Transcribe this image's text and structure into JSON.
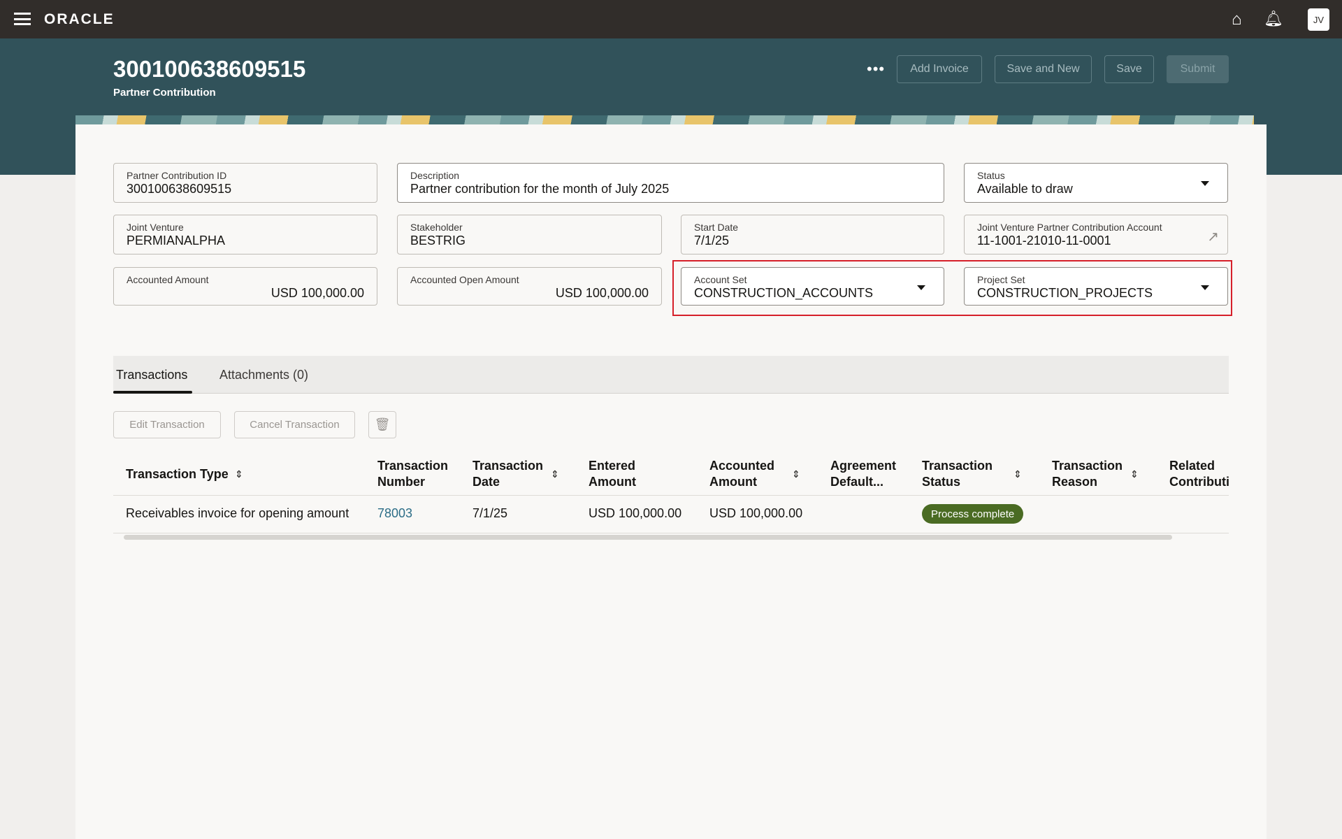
{
  "topbar": {
    "brand": "ORACLE",
    "avatar_initials": "JV",
    "icons": [
      "menu-icon",
      "home-icon",
      "bell-icon"
    ]
  },
  "header": {
    "title": "300100638609515",
    "subtitle": "Partner Contribution",
    "more": "•••",
    "buttons": {
      "add_invoice": "Add Invoice",
      "save_and_new": "Save and New",
      "save": "Save",
      "submit": "Submit"
    }
  },
  "fields": {
    "partner_contribution_id": {
      "label": "Partner Contribution ID",
      "value": "300100638609515"
    },
    "description": {
      "label": "Description",
      "value": "Partner contribution for the month of July 2025"
    },
    "status": {
      "label": "Status",
      "value": "Available to draw"
    },
    "joint_venture": {
      "label": "Joint Venture",
      "value": "PERMIANALPHA"
    },
    "stakeholder": {
      "label": "Stakeholder",
      "value": "BESTRIG"
    },
    "start_date": {
      "label": "Start Date",
      "value": "7/1/25"
    },
    "jv_account": {
      "label": "Joint Venture Partner Contribution Account",
      "value": "11-1001-21010-11-0001"
    },
    "accounted_amount": {
      "label": "Accounted Amount",
      "value": "USD 100,000.00"
    },
    "accounted_open_amount": {
      "label": "Accounted Open Amount",
      "value": "USD 100,000.00"
    },
    "account_set": {
      "label": "Account Set",
      "value": "CONSTRUCTION_ACCOUNTS"
    },
    "project_set": {
      "label": "Project Set",
      "value": "CONSTRUCTION_PROJECTS"
    }
  },
  "tabs": [
    {
      "label": "Transactions",
      "active": true
    },
    {
      "label": "Attachments (0)",
      "active": false
    }
  ],
  "toolbar": {
    "edit": "Edit Transaction",
    "cancel": "Cancel Transaction"
  },
  "table": {
    "columns": [
      {
        "l1": "Transaction Type",
        "l2": ""
      },
      {
        "l1": "Transaction",
        "l2": "Number"
      },
      {
        "l1": "Transaction",
        "l2": "Date"
      },
      {
        "l1": "Entered",
        "l2": "Amount"
      },
      {
        "l1": "Accounted",
        "l2": "Amount"
      },
      {
        "l1": "Agreement",
        "l2": "Default..."
      },
      {
        "l1": "Transaction",
        "l2": "Status"
      },
      {
        "l1": "Transaction",
        "l2": "Reason"
      },
      {
        "l1": "Related",
        "l2": "Contributi"
      }
    ],
    "rows": [
      {
        "type": "Receivables invoice for opening amount",
        "number": "78003",
        "date": "7/1/25",
        "entered": "USD 100,000.00",
        "accounted": "USD 100,000.00",
        "agreement": "",
        "status": "Process complete",
        "reason": "",
        "related": ""
      }
    ]
  },
  "colors": {
    "topbar": "#312d2a",
    "hero": "#31525a",
    "status_badge": "#4a6b23",
    "highlight": "#d6202a",
    "link": "#2c6d87"
  }
}
